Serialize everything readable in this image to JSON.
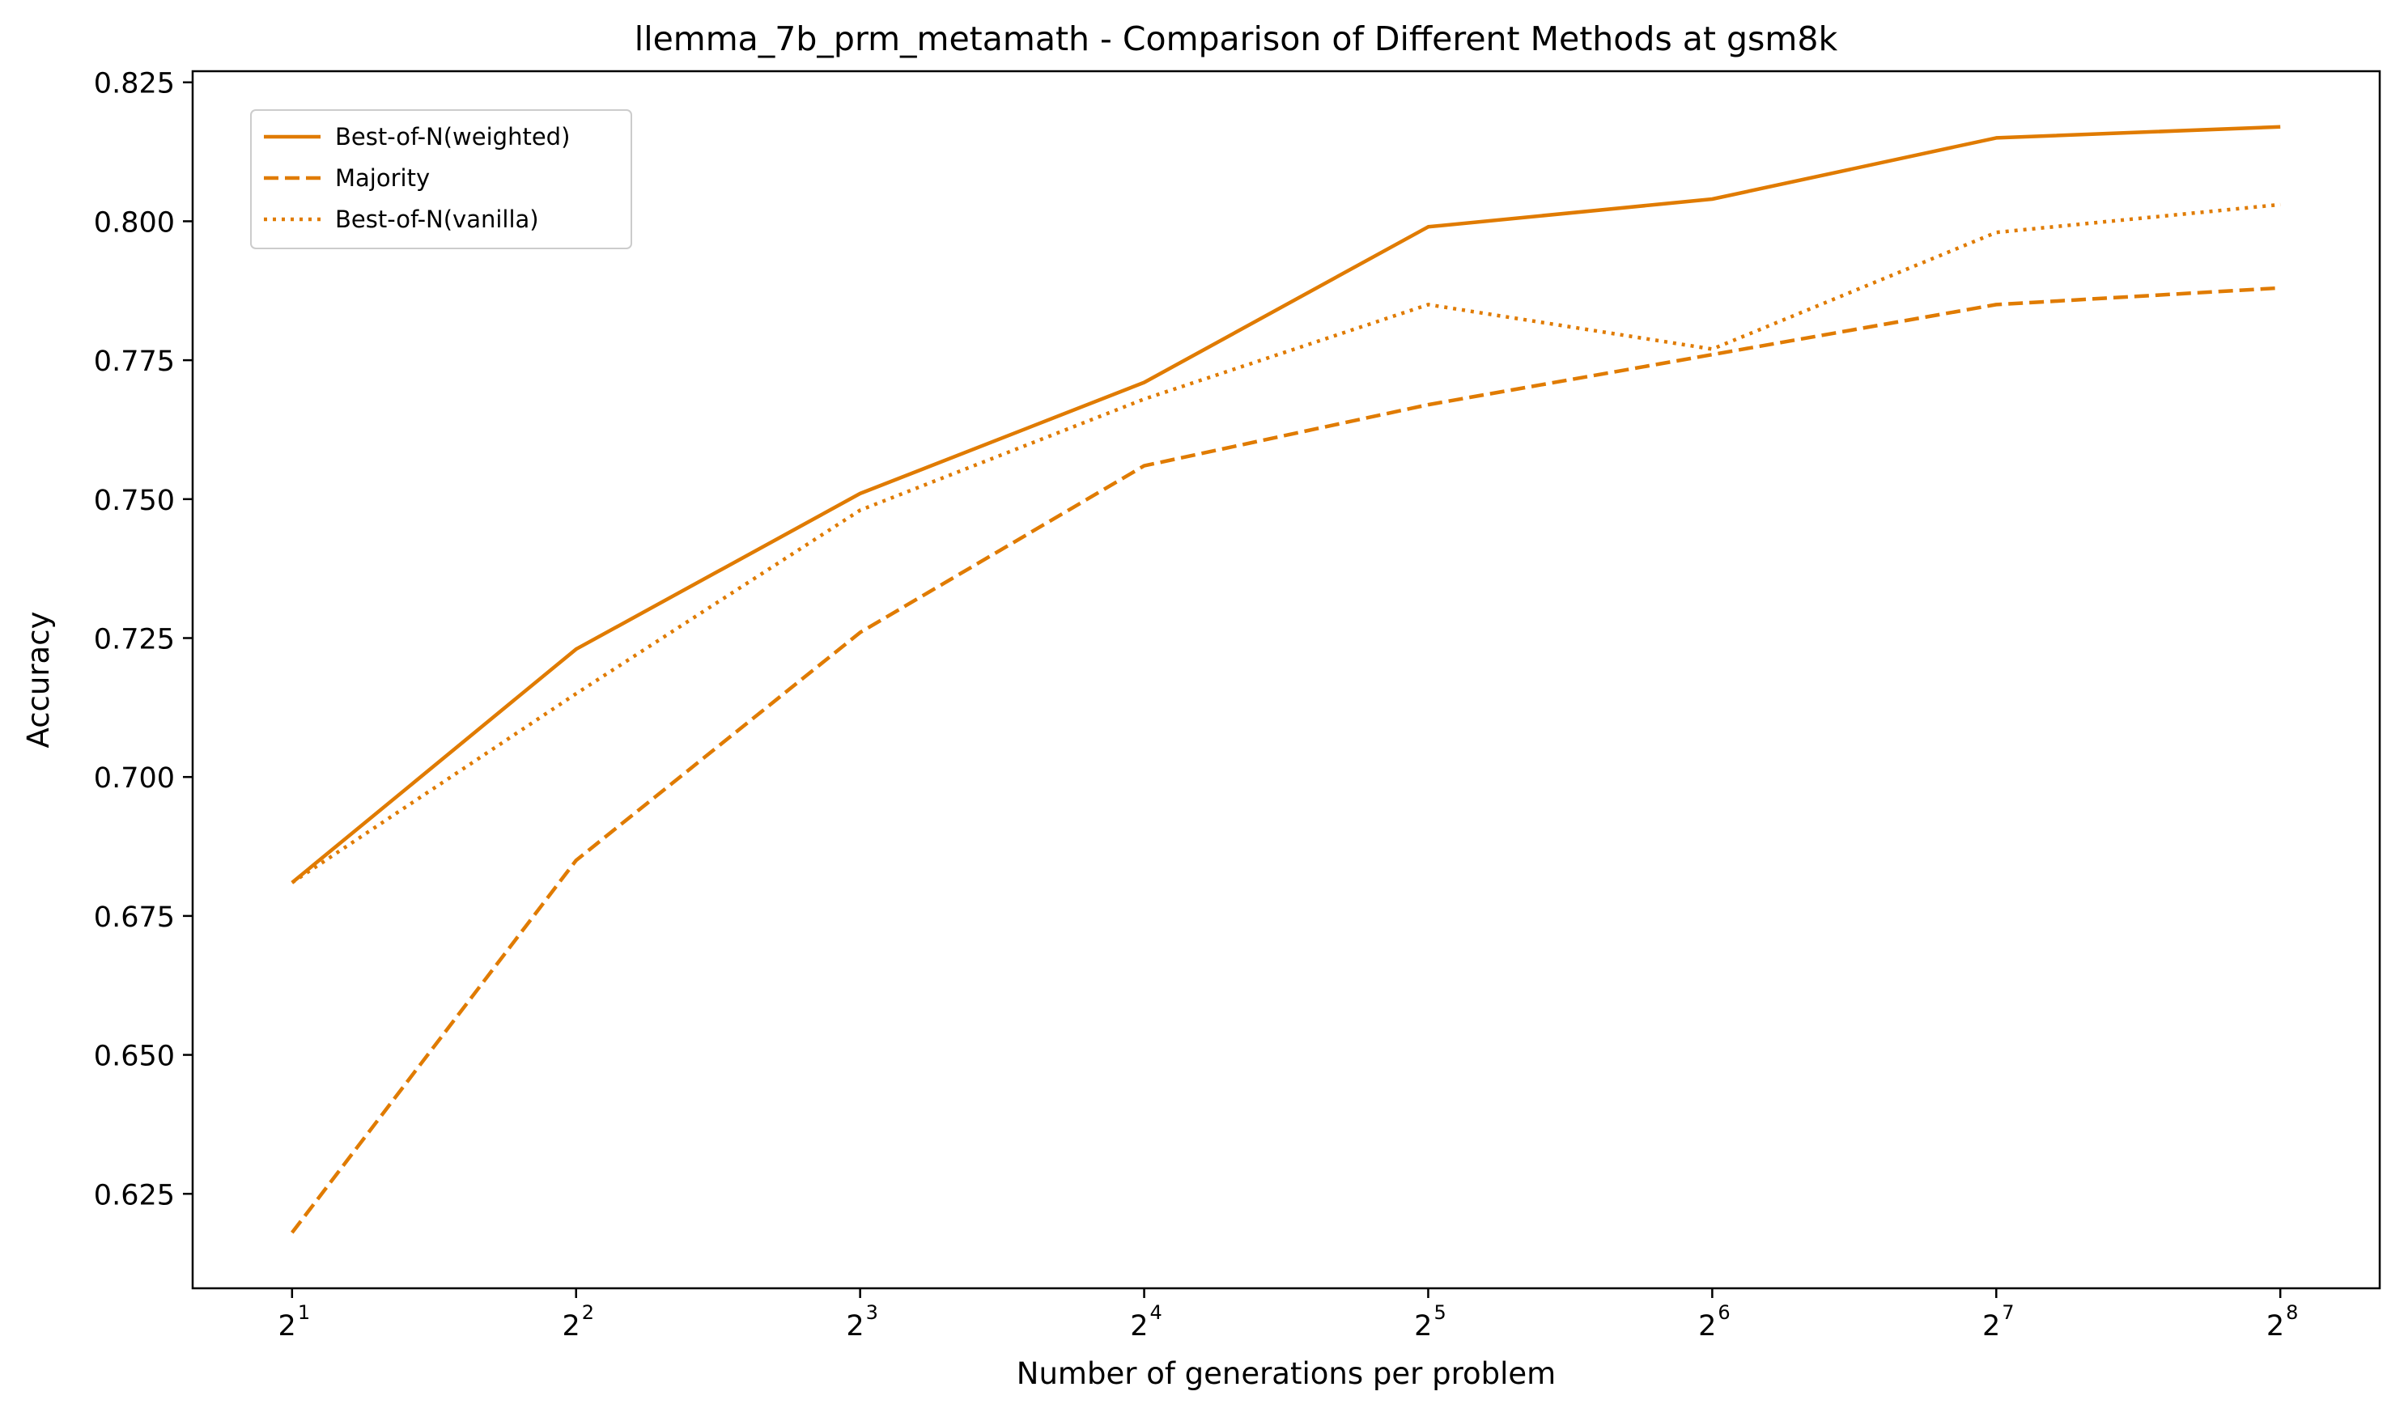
{
  "chart_data": {
    "type": "line",
    "title": "llemma_7b_prm_metamath - Comparison of Different Methods at gsm8k",
    "xlabel": "Number of generations per problem",
    "ylabel": "Accuracy",
    "x_scale": "log2",
    "x": [
      2,
      4,
      8,
      16,
      32,
      64,
      128,
      256
    ],
    "x_tick_base": "2",
    "x_tick_exponents": [
      "1",
      "2",
      "3",
      "4",
      "5",
      "6",
      "7",
      "8"
    ],
    "ylim": [
      0.608,
      0.827
    ],
    "y_ticks": [
      0.625,
      0.65,
      0.675,
      0.7,
      0.725,
      0.75,
      0.775,
      0.8,
      0.825
    ],
    "y_tick_labels": [
      "0.625",
      "0.650",
      "0.675",
      "0.700",
      "0.725",
      "0.750",
      "0.775",
      "0.800",
      "0.825"
    ],
    "grid": false,
    "legend_position": "top-left",
    "series": [
      {
        "name": "Best-of-N(weighted)",
        "line_style": "solid",
        "color": "#e07b00",
        "values": [
          0.681,
          0.723,
          0.751,
          0.771,
          0.799,
          0.804,
          0.815,
          0.817
        ]
      },
      {
        "name": "Majority",
        "line_style": "dashed",
        "color": "#e07b00",
        "values": [
          0.618,
          0.685,
          0.726,
          0.756,
          0.767,
          0.776,
          0.785,
          0.788
        ]
      },
      {
        "name": "Best-of-N(vanilla)",
        "line_style": "dotted",
        "color": "#e07b00",
        "values": [
          0.681,
          0.715,
          0.748,
          0.768,
          0.785,
          0.777,
          0.798,
          0.803
        ]
      }
    ]
  }
}
